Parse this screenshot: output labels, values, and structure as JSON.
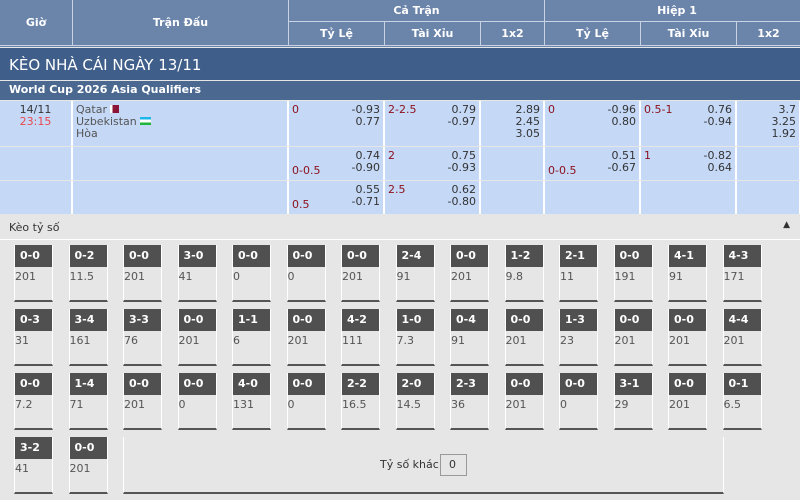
{
  "header": {
    "gio": "Giờ",
    "tran_dau": "Trận Đấu",
    "ca_tran": "Cả Trận",
    "hiep1": "Hiệp 1",
    "ty_le": "Tỷ Lệ",
    "tai_xiu": "Tài Xỉu",
    "x12": "1x2"
  },
  "title": "KÈO NHÀ CÁI NGÀY 13/11",
  "league": "World Cup 2026 Asia Qualifiers",
  "match": {
    "date": "14/11",
    "time": "23:15",
    "home": "Qatar",
    "away": "Uzbekistan",
    "draw": "Hòa",
    "home_flag": "qatar-flag",
    "away_flag": "uzbekistan-flag"
  },
  "rows": [
    {
      "ft_hdp": "0",
      "ft_hdp_odds": [
        "-0.93",
        "0.77"
      ],
      "ft_ou": "2-2.5",
      "ft_ou_odds": [
        "0.79",
        "-0.97"
      ],
      "ft_1x2": [
        "2.89",
        "2.45",
        "3.05"
      ],
      "h1_hdp": "0",
      "h1_hdp_odds": [
        "-0.96",
        "0.80"
      ],
      "h1_ou": "0.5-1",
      "h1_ou_odds": [
        "0.76",
        "-0.94"
      ],
      "h1_1x2": [
        "3.7",
        "3.25",
        "1.92"
      ]
    },
    {
      "ft_hdp": "0-0.5",
      "ft_hdp_odds": [
        "0.74",
        "-0.90"
      ],
      "ft_ou": "2",
      "ft_ou_odds": [
        "0.75",
        "-0.93"
      ],
      "h1_hdp": "0-0.5",
      "h1_hdp_odds": [
        "0.51",
        "-0.67"
      ],
      "h1_ou": "1",
      "h1_ou_odds": [
        "-0.82",
        "0.64"
      ]
    },
    {
      "ft_hdp": "0.5",
      "ft_hdp_odds": [
        "0.55",
        "-0.71"
      ],
      "ft_ou": "2.5",
      "ft_ou_odds": [
        "0.62",
        "-0.80"
      ]
    }
  ],
  "score_section": {
    "label": "Kèo tỷ số",
    "collapse_icon": "triangle-up-icon",
    "other_label": "Tỷ số khác",
    "other_value": "0"
  },
  "scores": [
    [
      [
        "0-0",
        "201"
      ],
      [
        "0-2",
        "11.5"
      ],
      [
        "0-0",
        "201"
      ],
      [
        "3-0",
        "41"
      ],
      [
        "0-0",
        "0"
      ],
      [
        "0-0",
        "0"
      ],
      [
        "0-0",
        "201"
      ],
      [
        "2-4",
        "91"
      ],
      [
        "0-0",
        "201"
      ],
      [
        "1-2",
        "9.8"
      ],
      [
        "2-1",
        "11"
      ],
      [
        "0-0",
        "191"
      ],
      [
        "4-1",
        "91"
      ],
      [
        "4-3",
        "171"
      ]
    ],
    [
      [
        "0-3",
        "31"
      ],
      [
        "3-4",
        "161"
      ],
      [
        "3-3",
        "76"
      ],
      [
        "0-0",
        "201"
      ],
      [
        "1-1",
        "6"
      ],
      [
        "0-0",
        "201"
      ],
      [
        "4-2",
        "111"
      ],
      [
        "1-0",
        "7.3"
      ],
      [
        "0-4",
        "91"
      ],
      [
        "0-0",
        "201"
      ],
      [
        "1-3",
        "23"
      ],
      [
        "0-0",
        "201"
      ],
      [
        "0-0",
        "201"
      ],
      [
        "4-4",
        "201"
      ]
    ],
    [
      [
        "0-0",
        "7.2"
      ],
      [
        "1-4",
        "71"
      ],
      [
        "0-0",
        "201"
      ],
      [
        "0-0",
        "0"
      ],
      [
        "4-0",
        "131"
      ],
      [
        "0-0",
        "0"
      ],
      [
        "2-2",
        "16.5"
      ],
      [
        "2-0",
        "14.5"
      ],
      [
        "2-3",
        "36"
      ],
      [
        "0-0",
        "201"
      ],
      [
        "0-0",
        "0"
      ],
      [
        "3-1",
        "29"
      ],
      [
        "0-0",
        "201"
      ],
      [
        "0-1",
        "6.5"
      ]
    ],
    [
      [
        "3-2",
        "41"
      ],
      [
        "0-0",
        "201"
      ]
    ]
  ],
  "colors": {
    "header": "#6a84aa",
    "title_bar": "#3f5f8a",
    "row_bg": "#c5d9f7",
    "odds_red": "#8b0f1a",
    "time_red": "#e8474d"
  }
}
